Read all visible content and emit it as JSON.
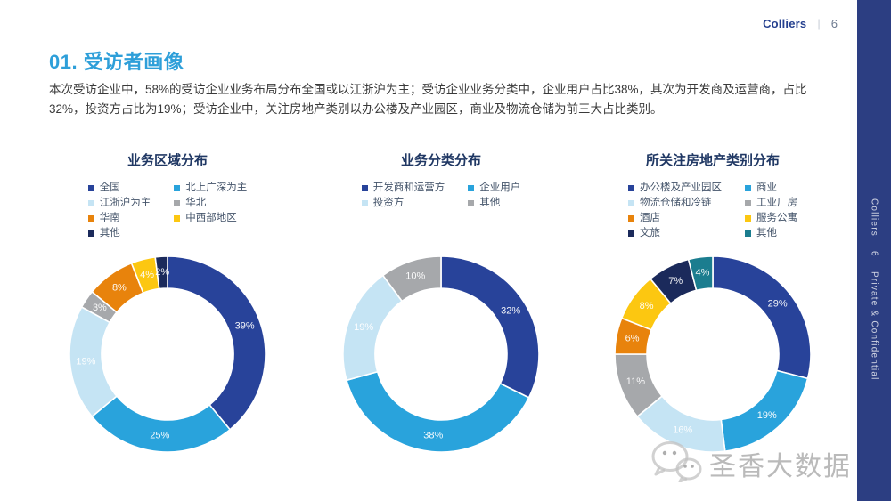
{
  "page": {
    "header": {
      "brand": "Colliers",
      "divider": "|",
      "page_number": "6"
    },
    "title": "01. 受访者画像",
    "body_text": "本次受访企业中，58%的受访企业业务布局分布全国或以江浙沪为主；受访企业业务分类中，企业用户占比38%，其次为开发商及运营商，占比32%，投资方占比为19%；受访企业中，关注房地产类别以办公楼及产业园区，商业及物流仓储为前三大占比类别。",
    "sidebar": {
      "brand": "Colliers",
      "page_number": "6",
      "confidential": "Private & Confidential",
      "background": "#2C3E82"
    },
    "watermark": {
      "icon": "wechat-icon",
      "text": "圣香大数据"
    }
  },
  "colors": {
    "accent_blue": "#2E9FD9",
    "brand_navy": "#25408F",
    "chart_title": "#203864",
    "legend_text": "#44546A",
    "slice_gap": "#FFFFFF"
  },
  "chart_data": [
    {
      "type": "pie",
      "subtype": "donut",
      "title": "业务区域分布",
      "legend_position": "top",
      "legend_columns": 2,
      "categories": [
        "全国",
        "北上广深为主",
        "江浙沪为主",
        "华北",
        "华南",
        "中西部地区",
        "其他"
      ],
      "values": [
        39,
        25,
        19,
        3,
        8,
        4,
        2
      ],
      "labels": [
        "39%",
        "25%",
        "19%",
        "3%",
        "8%",
        "4%",
        "2%"
      ],
      "colors": [
        "#28439A",
        "#29A3DC",
        "#C5E4F4",
        "#A6A8AB",
        "#E8830C",
        "#FCC711",
        "#1B2A5B"
      ]
    },
    {
      "type": "pie",
      "subtype": "donut",
      "title": "业务分类分布",
      "legend_position": "top",
      "legend_columns": 2,
      "categories": [
        "开发商和运营方",
        "企业用户",
        "投资方",
        "其他"
      ],
      "values": [
        32,
        38,
        19,
        10
      ],
      "labels": [
        "32%",
        "38%",
        "19%",
        "10%"
      ],
      "colors": [
        "#28439A",
        "#29A3DC",
        "#C5E4F4",
        "#A6A8AB"
      ]
    },
    {
      "type": "pie",
      "subtype": "donut",
      "title": "所关注房地产类别分布",
      "legend_position": "top",
      "legend_columns": 2,
      "categories": [
        "办公楼及产业园区",
        "商业",
        "物流仓储和冷链",
        "工业厂房",
        "酒店",
        "服务公寓",
        "文旅",
        "其他"
      ],
      "values": [
        29,
        19,
        16,
        11,
        6,
        8,
        7,
        4
      ],
      "labels": [
        "29%",
        "19%",
        "16%",
        "11%",
        "6%",
        "8%",
        "7%",
        "4%"
      ],
      "colors": [
        "#28439A",
        "#29A3DC",
        "#C5E4F4",
        "#A6A8AB",
        "#E8830C",
        "#FCC711",
        "#1B2A5B",
        "#1B7D8F"
      ]
    }
  ]
}
